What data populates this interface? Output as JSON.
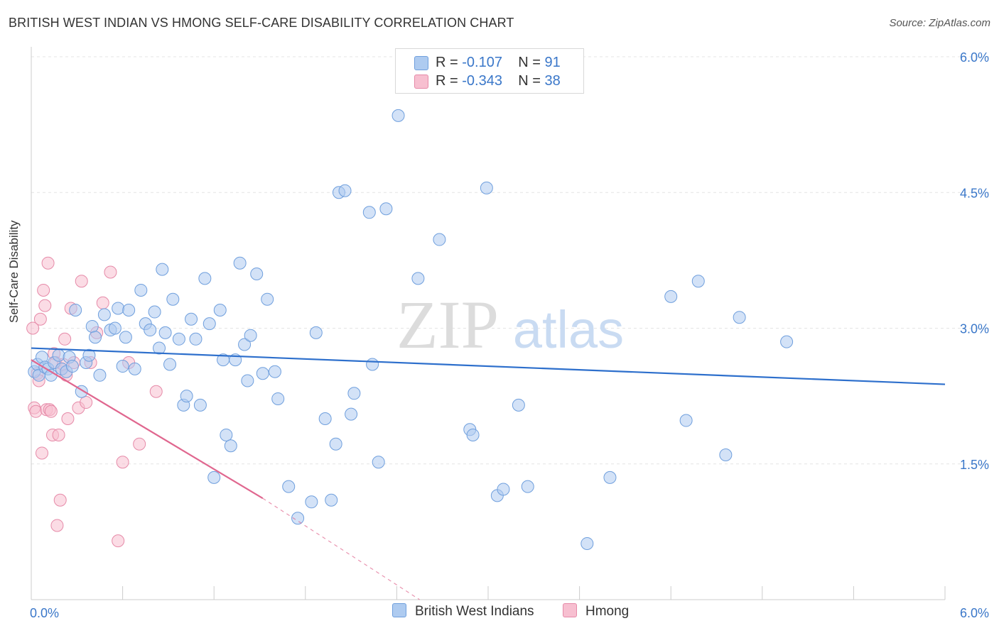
{
  "title": "BRITISH WEST INDIAN VS HMONG SELF-CARE DISABILITY CORRELATION CHART",
  "source": "Source: ZipAtlas.com",
  "watermark": {
    "zip": "ZIP",
    "atlas": "atlas"
  },
  "legend_top": [
    {
      "r_label": "R = ",
      "r_value": "-0.107",
      "n_label": "N = ",
      "n_value": "91"
    },
    {
      "r_label": "R = ",
      "r_value": "-0.343",
      "n_label": "N = ",
      "n_value": "38"
    }
  ],
  "legend_bottom": [
    "British West Indians",
    "Hmong"
  ],
  "colors": {
    "blue_fill": "#aecbf0",
    "blue_stroke": "#6f9fdd",
    "blue_line": "#2d6fcc",
    "pink_fill": "#f7bfd0",
    "pink_stroke": "#e68aa8",
    "pink_line": "#e0678f",
    "tick_text": "#3a77c9",
    "grid": "#e4e4e4"
  },
  "chart_data": {
    "type": "scatter",
    "title": "BRITISH WEST INDIAN VS HMONG SELF-CARE DISABILITY CORRELATION CHART",
    "xlabel": "",
    "ylabel": "Self-Care Disability",
    "xlim": [
      0,
      6.0
    ],
    "ylim": [
      0,
      6.0
    ],
    "x_tick_labels": [
      "0.0%",
      "6.0%"
    ],
    "y_ticks": [
      1.5,
      3.0,
      4.5,
      6.0
    ],
    "y_tick_labels": [
      "1.5%",
      "3.0%",
      "4.5%",
      "6.0%"
    ],
    "grid": true,
    "legend_position": "bottom",
    "series": [
      {
        "name": "British West Indians",
        "color": "#aecbf0",
        "r": -0.107,
        "n": 91,
        "trend": {
          "x": [
            0,
            6.0
          ],
          "y": [
            2.78,
            2.38
          ]
        },
        "points": [
          [
            0.02,
            2.52
          ],
          [
            0.04,
            2.6
          ],
          [
            0.05,
            2.48
          ],
          [
            0.07,
            2.68
          ],
          [
            0.09,
            2.57
          ],
          [
            0.11,
            2.55
          ],
          [
            0.13,
            2.48
          ],
          [
            0.15,
            2.62
          ],
          [
            0.18,
            2.7
          ],
          [
            0.2,
            2.55
          ],
          [
            0.23,
            2.52
          ],
          [
            0.25,
            2.68
          ],
          [
            0.27,
            2.58
          ],
          [
            0.29,
            3.2
          ],
          [
            0.33,
            2.3
          ],
          [
            0.36,
            2.62
          ],
          [
            0.38,
            2.7
          ],
          [
            0.4,
            3.02
          ],
          [
            0.42,
            2.9
          ],
          [
            0.45,
            2.48
          ],
          [
            0.48,
            3.15
          ],
          [
            0.52,
            2.98
          ],
          [
            0.55,
            3.0
          ],
          [
            0.57,
            3.22
          ],
          [
            0.6,
            2.58
          ],
          [
            0.62,
            2.9
          ],
          [
            0.64,
            3.2
          ],
          [
            0.68,
            2.55
          ],
          [
            0.72,
            3.42
          ],
          [
            0.75,
            3.05
          ],
          [
            0.78,
            2.98
          ],
          [
            0.81,
            3.18
          ],
          [
            0.84,
            2.78
          ],
          [
            0.86,
            3.65
          ],
          [
            0.88,
            2.95
          ],
          [
            0.91,
            2.6
          ],
          [
            0.93,
            3.32
          ],
          [
            0.97,
            2.88
          ],
          [
            1.0,
            2.15
          ],
          [
            1.02,
            2.25
          ],
          [
            1.05,
            3.1
          ],
          [
            1.08,
            2.88
          ],
          [
            1.11,
            2.15
          ],
          [
            1.14,
            3.55
          ],
          [
            1.17,
            3.05
          ],
          [
            1.2,
            1.35
          ],
          [
            1.24,
            3.2
          ],
          [
            1.26,
            2.65
          ],
          [
            1.28,
            1.82
          ],
          [
            1.31,
            1.7
          ],
          [
            1.34,
            2.65
          ],
          [
            1.37,
            3.72
          ],
          [
            1.4,
            2.82
          ],
          [
            1.42,
            2.42
          ],
          [
            1.44,
            2.92
          ],
          [
            1.48,
            3.6
          ],
          [
            1.52,
            2.5
          ],
          [
            1.55,
            3.32
          ],
          [
            1.6,
            2.52
          ],
          [
            1.62,
            2.22
          ],
          [
            1.69,
            1.25
          ],
          [
            1.75,
            0.9
          ],
          [
            1.84,
            1.08
          ],
          [
            1.87,
            2.95
          ],
          [
            1.93,
            2.0
          ],
          [
            1.97,
            1.1
          ],
          [
            2.0,
            1.72
          ],
          [
            2.02,
            4.5
          ],
          [
            2.06,
            4.52
          ],
          [
            2.1,
            2.05
          ],
          [
            2.12,
            2.28
          ],
          [
            2.22,
            4.28
          ],
          [
            2.24,
            2.6
          ],
          [
            2.28,
            1.52
          ],
          [
            2.33,
            4.32
          ],
          [
            2.41,
            5.35
          ],
          [
            2.54,
            3.55
          ],
          [
            2.68,
            3.98
          ],
          [
            2.88,
            1.88
          ],
          [
            2.9,
            1.82
          ],
          [
            2.99,
            4.55
          ],
          [
            3.06,
            1.15
          ],
          [
            3.1,
            1.22
          ],
          [
            3.2,
            2.15
          ],
          [
            3.26,
            1.25
          ],
          [
            3.65,
            0.62
          ],
          [
            3.8,
            1.35
          ],
          [
            4.2,
            3.35
          ],
          [
            4.3,
            1.98
          ],
          [
            4.38,
            3.52
          ],
          [
            4.56,
            1.6
          ],
          [
            4.65,
            3.12
          ],
          [
            4.96,
            2.85
          ]
        ]
      },
      {
        "name": "Hmong",
        "color": "#f7bfd0",
        "r": -0.343,
        "n": 38,
        "trend": {
          "x": [
            0,
            1.52
          ],
          "y": [
            2.65,
            1.12
          ]
        },
        "trend_dashed": {
          "x": [
            1.52,
            2.55
          ],
          "y": [
            1.12,
            0.0
          ]
        },
        "points": [
          [
            0.01,
            3.0
          ],
          [
            0.02,
            2.12
          ],
          [
            0.03,
            2.08
          ],
          [
            0.04,
            2.5
          ],
          [
            0.05,
            2.42
          ],
          [
            0.06,
            3.1
          ],
          [
            0.07,
            1.62
          ],
          [
            0.08,
            3.42
          ],
          [
            0.09,
            3.25
          ],
          [
            0.1,
            2.1
          ],
          [
            0.11,
            3.72
          ],
          [
            0.12,
            2.1
          ],
          [
            0.13,
            2.08
          ],
          [
            0.14,
            1.82
          ],
          [
            0.15,
            2.72
          ],
          [
            0.16,
            2.62
          ],
          [
            0.17,
            0.82
          ],
          [
            0.18,
            1.82
          ],
          [
            0.19,
            1.1
          ],
          [
            0.2,
            2.55
          ],
          [
            0.21,
            2.6
          ],
          [
            0.22,
            2.88
          ],
          [
            0.23,
            2.48
          ],
          [
            0.24,
            2.0
          ],
          [
            0.26,
            3.22
          ],
          [
            0.28,
            2.62
          ],
          [
            0.31,
            2.12
          ],
          [
            0.33,
            3.52
          ],
          [
            0.36,
            2.18
          ],
          [
            0.39,
            2.62
          ],
          [
            0.43,
            2.95
          ],
          [
            0.47,
            3.28
          ],
          [
            0.52,
            3.62
          ],
          [
            0.57,
            0.65
          ],
          [
            0.6,
            1.52
          ],
          [
            0.64,
            2.62
          ],
          [
            0.71,
            1.72
          ],
          [
            0.82,
            2.3
          ]
        ]
      }
    ]
  }
}
